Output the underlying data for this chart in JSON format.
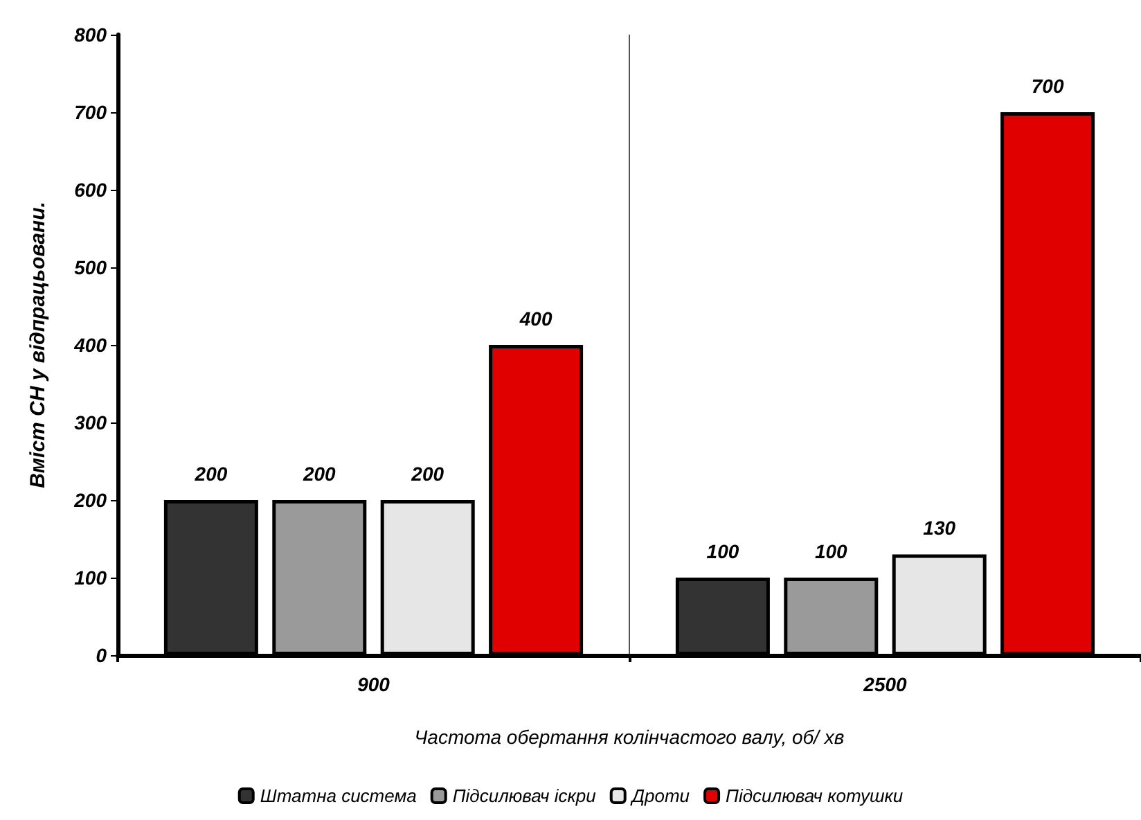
{
  "chart_data": {
    "type": "bar",
    "xlabel": "Частота обертання колінчастого валу, об/ хв",
    "ylabel": "Вміст СН у відпрацьовани.",
    "categories": [
      "900",
      "2500"
    ],
    "series": [
      {
        "name": "Штатна система",
        "color": "#333333",
        "values": [
          200,
          100
        ]
      },
      {
        "name": "Підсилювач іскри",
        "color": "#9a9a9a",
        "values": [
          200,
          100
        ]
      },
      {
        "name": "Дроти",
        "color": "#e6e6e6",
        "values": [
          200,
          130
        ]
      },
      {
        "name": "Підсилювач котушки",
        "color": "#e00000",
        "values": [
          400,
          700
        ]
      }
    ],
    "ylim": [
      0,
      800
    ],
    "yticks": [
      0,
      100,
      200,
      300,
      400,
      500,
      600,
      700,
      800
    ],
    "grid": "x",
    "legend": "bottom",
    "data_labels": true
  }
}
